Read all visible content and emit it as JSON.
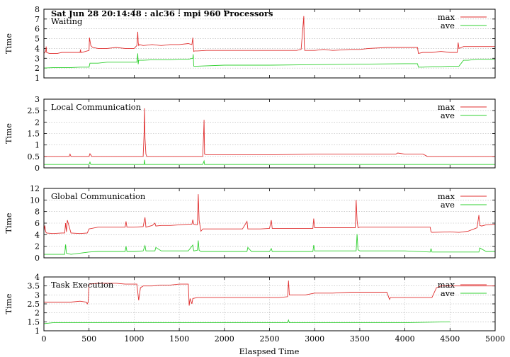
{
  "header": "Sat Jun 28 20:14:48 : alc36 : mpi 960 Processors",
  "xlabel": "Elaspsed Time",
  "xlim": [
    0,
    5000
  ],
  "xticks": [
    0,
    500,
    1000,
    1500,
    2000,
    2500,
    3000,
    3500,
    4000,
    4500,
    5000
  ],
  "colors": {
    "max": "#e03030",
    "ave": "#30d030",
    "grid": "#b0b0b0"
  },
  "chart_data": [
    {
      "type": "line",
      "title": "Waiting",
      "ylabel": "Time",
      "ylim": [
        1,
        8
      ],
      "yticks": [
        1,
        2,
        3,
        4,
        5,
        6,
        7,
        8
      ],
      "legend": "top-right",
      "grid": true,
      "series": [
        {
          "name": "max",
          "x": [
            0,
            20,
            25,
            30,
            60,
            80,
            100,
            150,
            200,
            300,
            380,
            400,
            405,
            410,
            420,
            500,
            505,
            520,
            540,
            600,
            700,
            800,
            900,
            1000,
            1030,
            1040,
            1045,
            1050,
            1060,
            1100,
            1200,
            1300,
            1400,
            1500,
            1600,
            1640,
            1650,
            1655,
            1660,
            1670,
            1700,
            1800,
            2000,
            2200,
            2400,
            2600,
            2800,
            2850,
            2880,
            2885,
            2890,
            2900,
            3000,
            3100,
            3200,
            3400,
            3500,
            3600,
            3800,
            4000,
            4120,
            4140,
            4150,
            4200,
            4300,
            4400,
            4500,
            4550,
            4580,
            4590,
            4600,
            4650,
            4700,
            4800,
            4900,
            5000
          ],
          "y": [
            3.5,
            3.7,
            4.2,
            3.6,
            3.5,
            3.5,
            3.5,
            3.5,
            3.6,
            3.6,
            3.6,
            3.6,
            3.9,
            3.6,
            3.6,
            3.8,
            5.1,
            4.3,
            4.1,
            4.0,
            4.0,
            4.1,
            4.0,
            4.0,
            4.3,
            5.7,
            4.6,
            4.3,
            4.4,
            4.3,
            4.4,
            4.3,
            4.4,
            4.4,
            4.5,
            4.4,
            5.1,
            4.4,
            3.7,
            3.75,
            3.75,
            3.8,
            3.8,
            3.8,
            3.8,
            3.8,
            3.8,
            3.9,
            7.3,
            4.5,
            3.8,
            3.8,
            3.8,
            3.9,
            3.8,
            3.9,
            3.9,
            4.0,
            4.1,
            4.1,
            4.1,
            4.1,
            3.5,
            3.6,
            3.6,
            3.7,
            3.6,
            3.6,
            3.6,
            4.6,
            4.0,
            4.2,
            4.2,
            4.2,
            4.2,
            4.2
          ]
        },
        {
          "name": "ave",
          "x": [
            0,
            100,
            200,
            300,
            400,
            450,
            500,
            510,
            600,
            700,
            800,
            900,
            1000,
            1030,
            1040,
            1045,
            1050,
            1100,
            1200,
            1300,
            1400,
            1500,
            1600,
            1650,
            1655,
            1660,
            1700,
            2000,
            2500,
            3000,
            3500,
            4000,
            4140,
            4150,
            4200,
            4300,
            4400,
            4500,
            4600,
            4650,
            4700,
            4800,
            5000
          ],
          "y": [
            2.0,
            2.05,
            2.05,
            2.05,
            2.1,
            2.1,
            2.1,
            2.5,
            2.5,
            2.6,
            2.6,
            2.6,
            2.6,
            2.6,
            3.5,
            2.4,
            2.8,
            2.8,
            2.85,
            2.85,
            2.85,
            2.9,
            2.9,
            3.0,
            3.4,
            2.2,
            2.2,
            2.3,
            2.3,
            2.35,
            2.4,
            2.45,
            2.45,
            2.1,
            2.1,
            2.15,
            2.15,
            2.2,
            2.2,
            2.8,
            2.8,
            2.9,
            2.9
          ]
        }
      ]
    },
    {
      "type": "line",
      "title": "Local Communication",
      "ylabel": "Time",
      "ylim": [
        0,
        3
      ],
      "yticks": [
        0,
        0.5,
        1,
        1.5,
        2,
        2.5,
        3
      ],
      "legend": "top-right",
      "grid": true,
      "series": [
        {
          "name": "max",
          "x": [
            0,
            100,
            200,
            280,
            290,
            300,
            400,
            500,
            510,
            530,
            600,
            800,
            1000,
            1100,
            1110,
            1115,
            1120,
            1130,
            1140,
            1200,
            1400,
            1600,
            1700,
            1760,
            1770,
            1775,
            1780,
            1800,
            2000,
            2500,
            3000,
            3500,
            3800,
            3900,
            3920,
            4000,
            4100,
            4200,
            4250,
            4300,
            4500,
            4800,
            5000
          ],
          "y": [
            0.5,
            0.5,
            0.5,
            0.5,
            0.6,
            0.5,
            0.5,
            0.5,
            0.62,
            0.5,
            0.5,
            0.5,
            0.5,
            0.5,
            1.5,
            2.6,
            1.3,
            0.6,
            0.5,
            0.5,
            0.5,
            0.5,
            0.5,
            0.5,
            1.5,
            2.1,
            0.6,
            0.57,
            0.57,
            0.57,
            0.6,
            0.6,
            0.6,
            0.6,
            0.65,
            0.6,
            0.6,
            0.6,
            0.5,
            0.5,
            0.5,
            0.5,
            0.5
          ]
        },
        {
          "name": "ave",
          "x": [
            0,
            500,
            510,
            520,
            1000,
            1110,
            1115,
            1120,
            1200,
            1760,
            1775,
            1780,
            2000,
            3000,
            4000,
            5000
          ],
          "y": [
            0.15,
            0.15,
            0.25,
            0.15,
            0.15,
            0.15,
            0.35,
            0.15,
            0.15,
            0.15,
            0.3,
            0.15,
            0.15,
            0.15,
            0.15,
            0.15
          ]
        }
      ]
    },
    {
      "type": "line",
      "title": "Global Communication",
      "ylabel": "Time",
      "ylim": [
        0,
        12
      ],
      "yticks": [
        0,
        2,
        4,
        6,
        8,
        10,
        12
      ],
      "legend": "top-right",
      "grid": true,
      "series": [
        {
          "name": "max",
          "x": [
            0,
            10,
            20,
            30,
            100,
            200,
            230,
            240,
            250,
            260,
            300,
            400,
            480,
            500,
            600,
            800,
            900,
            910,
            920,
            1000,
            1100,
            1120,
            1130,
            1200,
            1230,
            1240,
            1300,
            1400,
            1500,
            1600,
            1640,
            1650,
            1660,
            1700,
            1710,
            1720,
            1740,
            1760,
            1800,
            2000,
            2200,
            2250,
            2260,
            2400,
            2500,
            2520,
            2530,
            2600,
            2800,
            2980,
            2990,
            3000,
            3200,
            3400,
            3450,
            3460,
            3470,
            3480,
            3500,
            3700,
            3900,
            4000,
            4200,
            4280,
            4290,
            4300,
            4500,
            4600,
            4700,
            4800,
            4820,
            4830,
            4850,
            4900,
            5000
          ],
          "y": [
            4.6,
            5.6,
            4.5,
            4.3,
            4.2,
            4.3,
            4.3,
            6.0,
            4.5,
            6.5,
            4.3,
            4.2,
            4.3,
            5.0,
            5.3,
            5.3,
            5.3,
            6.3,
            5.3,
            5.3,
            5.4,
            7.0,
            5.3,
            5.6,
            6.0,
            5.5,
            5.6,
            5.6,
            5.7,
            5.8,
            5.8,
            6.6,
            5.8,
            5.7,
            11.0,
            6.5,
            4.6,
            5.0,
            5.0,
            5.0,
            5.0,
            6.3,
            5.0,
            5.0,
            5.1,
            6.5,
            5.1,
            5.1,
            5.1,
            5.1,
            6.8,
            5.2,
            5.2,
            5.2,
            5.2,
            10.0,
            6.5,
            5.2,
            5.3,
            5.3,
            5.3,
            5.3,
            5.3,
            5.3,
            4.5,
            4.4,
            4.5,
            4.4,
            4.6,
            5.2,
            7.4,
            5.6,
            5.5,
            5.7,
            5.8
          ]
        },
        {
          "name": "ave",
          "x": [
            0,
            100,
            230,
            240,
            250,
            300,
            500,
            600,
            900,
            910,
            920,
            1000,
            1100,
            1120,
            1130,
            1200,
            1230,
            1240,
            1300,
            1600,
            1650,
            1660,
            1700,
            1710,
            1720,
            1740,
            2000,
            2250,
            2260,
            2300,
            2500,
            2520,
            2530,
            2700,
            2980,
            2990,
            3000,
            3200,
            3460,
            3470,
            3480,
            3500,
            4000,
            4280,
            4290,
            4300,
            4600,
            4820,
            4830,
            4900,
            5000
          ],
          "y": [
            0.6,
            0.6,
            0.6,
            2.3,
            0.8,
            0.6,
            1.0,
            1.1,
            1.1,
            2.0,
            1.1,
            1.1,
            1.2,
            2.1,
            1.2,
            1.2,
            1.2,
            1.8,
            1.2,
            1.2,
            2.2,
            1.2,
            1.3,
            3.0,
            1.3,
            1.1,
            1.1,
            1.1,
            1.8,
            1.1,
            1.1,
            1.6,
            1.1,
            1.1,
            1.1,
            2.2,
            1.2,
            1.2,
            1.2,
            4.1,
            1.4,
            1.2,
            1.2,
            1.0,
            1.6,
            1.0,
            1.0,
            1.0,
            1.7,
            1.1,
            1.1
          ]
        }
      ]
    },
    {
      "type": "line",
      "title": "Task Execution",
      "ylabel": "Time",
      "ylim": [
        1,
        4
      ],
      "yticks": [
        1,
        1.5,
        2,
        2.5,
        3,
        3.5,
        4
      ],
      "legend": "top-right",
      "grid": true,
      "series": [
        {
          "name": "max",
          "x": [
            0,
            50,
            100,
            200,
            300,
            400,
            470,
            480,
            490,
            500,
            600,
            700,
            800,
            900,
            1000,
            1030,
            1050,
            1070,
            1100,
            1150,
            1200,
            1300,
            1400,
            1500,
            1600,
            1610,
            1620,
            1640,
            1650,
            1700,
            1800,
            2000,
            2200,
            2400,
            2600,
            2700,
            2710,
            2720,
            2740,
            2800,
            2900,
            3000,
            3200,
            3400,
            3600,
            3800,
            3830,
            3840,
            3850,
            4000,
            4200,
            4300,
            4350,
            4400,
            4500,
            4600,
            4700,
            4800,
            5000
          ],
          "y": [
            2.6,
            2.6,
            2.6,
            2.6,
            2.6,
            2.65,
            2.6,
            2.5,
            2.6,
            3.6,
            3.65,
            3.65,
            3.65,
            3.6,
            3.6,
            3.6,
            2.7,
            3.4,
            3.5,
            3.5,
            3.5,
            3.55,
            3.55,
            3.6,
            3.6,
            2.4,
            2.8,
            2.5,
            2.8,
            2.85,
            2.85,
            2.85,
            2.85,
            2.85,
            2.85,
            2.9,
            3.8,
            3.0,
            3.0,
            3.0,
            3.0,
            3.1,
            3.1,
            3.15,
            3.15,
            3.15,
            2.75,
            2.85,
            2.85,
            2.85,
            2.85,
            2.85,
            3.4,
            3.5,
            3.5,
            3.5,
            3.5,
            3.5,
            3.5
          ]
        },
        {
          "name": "ave",
          "x": [
            0,
            100,
            500,
            600,
            1000,
            1500,
            2000,
            2500,
            2700,
            2710,
            2720,
            3000,
            3500,
            4000,
            4500
          ],
          "y": [
            1.4,
            1.45,
            1.45,
            1.45,
            1.45,
            1.45,
            1.45,
            1.45,
            1.45,
            1.6,
            1.45,
            1.45,
            1.45,
            1.45,
            1.5
          ]
        }
      ]
    }
  ]
}
